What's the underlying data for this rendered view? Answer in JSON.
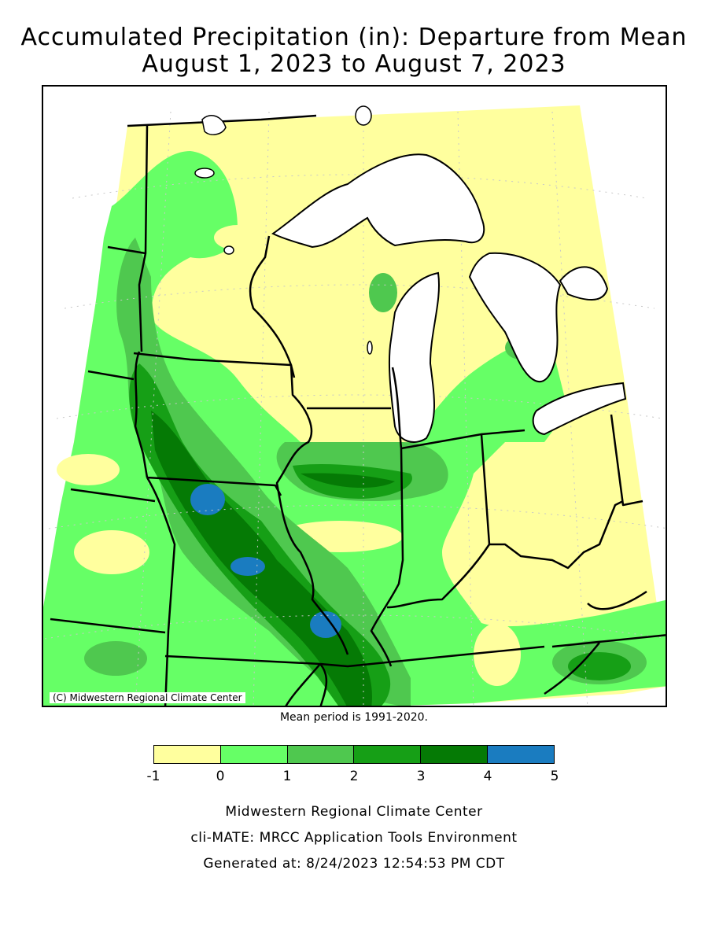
{
  "title_line1": "Accumulated Precipitation (in): Departure from Mean",
  "title_line2": "August 1, 2023 to August 7, 2023",
  "copyright": "(C) Midwestern Regional Climate Center",
  "mean_period": "Mean period is 1991-2020.",
  "legend": {
    "bins": [
      {
        "from": -1,
        "to": 0,
        "color": "#ffff9e"
      },
      {
        "from": 0,
        "to": 1,
        "color": "#66ff66"
      },
      {
        "from": 1,
        "to": 2,
        "color": "#4fc84f"
      },
      {
        "from": 2,
        "to": 3,
        "color": "#169f16"
      },
      {
        "from": 3,
        "to": 4,
        "color": "#057a05"
      },
      {
        "from": 4,
        "to": 5,
        "color": "#1a7cc0"
      }
    ],
    "tick_labels": [
      "-1",
      "0",
      "1",
      "2",
      "3",
      "4",
      "5"
    ]
  },
  "colors": {
    "lake": "#ffffff",
    "outside": "#ffffff",
    "boundary": "#000000",
    "graticule": "#c8c8c8"
  },
  "footer": {
    "line1": "Midwestern Regional Climate Center",
    "line2": "cli-MATE: MRCC Application Tools Environment",
    "line3": "Generated at: 8/24/2023 12:54:53 PM CDT"
  }
}
